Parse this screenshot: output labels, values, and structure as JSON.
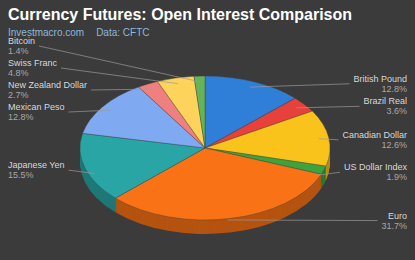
{
  "chart_data": {
    "type": "pie",
    "title": "Currency Futures: Open Interest Comparison",
    "subtitle": "Investmacro.com",
    "source": "Data: CFTC",
    "categories": [
      "British Pound",
      "Brazil Real",
      "Canadian Dollar",
      "US Dollar Index",
      "Euro",
      "Japanese Yen",
      "Mexican Peso",
      "New Zealand Dollar",
      "Swiss Franc",
      "Bitcoin"
    ],
    "values": [
      12.8,
      3.6,
      12.6,
      1.9,
      31.7,
      15.5,
      12.8,
      2.7,
      4.8,
      1.4
    ],
    "value_labels": [
      "12.8%",
      "3.6%",
      "12.6%",
      "1.9%",
      "31.7%",
      "15.5%",
      "12.8%",
      "2.7%",
      "4.8%",
      "1.4%"
    ],
    "colors": [
      "#2f7fd8",
      "#e8413c",
      "#f9c31b",
      "#3ca43c",
      "#f97316",
      "#29a5a5",
      "#7fa9f0",
      "#f08080",
      "#fdd35c",
      "#66b35a"
    ],
    "data_labels": true
  }
}
